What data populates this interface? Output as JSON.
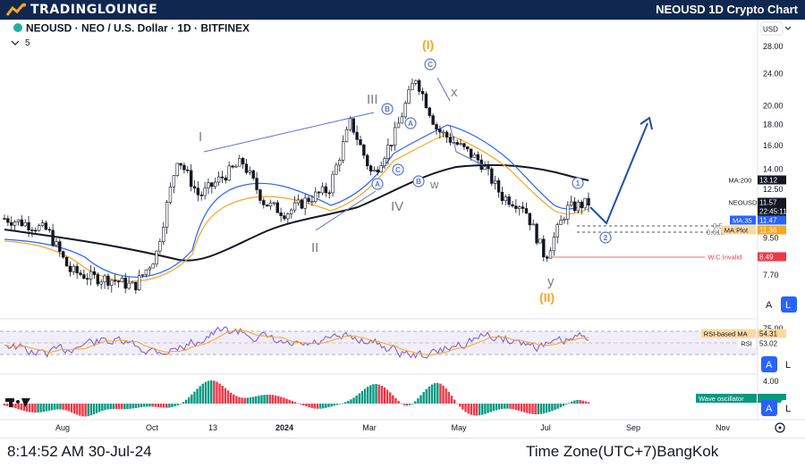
{
  "header": {
    "logo_text": "TRADINGLOUNGE",
    "title": "NEOUSD 1D Crypto Chart"
  },
  "legend": {
    "symbol_line": "NEOUSD · NEO / U.S. Dollar · 1D · BITFINEX",
    "indicator_count": "5"
  },
  "price_axis": {
    "currency": "USD"
  },
  "footer": {
    "clock": "8:14:52 AM 30-Jul-24",
    "timezone": "Time Zone(UTC+7)BangKok"
  },
  "panel_controls": {
    "a_label": "A",
    "l_label": "L"
  },
  "elliott_labels": {
    "wave_I": "I",
    "wave_II": "II",
    "wave_III": "III",
    "wave_IV": "IV",
    "wave_x": "x",
    "wave_y": "y",
    "wave_w": "w",
    "major_I": "(I)",
    "major_II": "(II)",
    "circle_A": "A",
    "circle_B": "B",
    "circle_C": "C",
    "circle_A2": "A",
    "circle_B2": "B",
    "circle_C2": "C",
    "circle_1": "1",
    "circle_2": "2"
  },
  "fib_labels": {
    "fib_05": "0.5",
    "fib_0618": "0.618"
  },
  "chart_data": [
    {
      "type": "candlestick",
      "pane": "price",
      "scale": "log",
      "price_ticks": [
        28.0,
        24.0,
        20.0,
        18.0,
        16.0,
        14.0,
        12.5,
        9.5,
        7.7
      ],
      "time_ticks": [
        "Aug",
        "Oct",
        "13",
        "2024",
        "Mar",
        "May",
        "Jul",
        "Sep",
        "Nov"
      ],
      "price_path": [
        {
          "t": "Jul-23",
          "p": 10.6
        },
        {
          "t": "Aug-23",
          "p": 10.3
        },
        {
          "t": "Aug-23b",
          "p": 9.9
        },
        {
          "t": "Aug-23c",
          "p": 7.9
        },
        {
          "t": "Sep-23",
          "p": 7.6
        },
        {
          "t": "Oct-23",
          "p": 7.5
        },
        {
          "t": "Oct-23b",
          "p": 7.2
        },
        {
          "t": "Oct-23c",
          "p": 8.6
        },
        {
          "t": "Nov-23",
          "p": 15.0
        },
        {
          "t": "Nov-23b",
          "p": 12.0
        },
        {
          "t": "Dec-23",
          "p": 13.3
        },
        {
          "t": "Dec-23b",
          "p": 14.6
        },
        {
          "t": "Jan-24",
          "p": 11.6
        },
        {
          "t": "Jan-24b",
          "p": 10.9
        },
        {
          "t": "Feb-24",
          "p": 11.8
        },
        {
          "t": "Feb-24b",
          "p": 12.5
        },
        {
          "t": "Mar-24",
          "p": 18.3
        },
        {
          "t": "Mar-24b",
          "p": 13.5
        },
        {
          "t": "Mar-24c",
          "p": 16.8
        },
        {
          "t": "Apr-24",
          "p": 23.6
        },
        {
          "t": "Apr-24b",
          "p": 17.5
        },
        {
          "t": "May-24",
          "p": 16.0
        },
        {
          "t": "May-24b",
          "p": 14.6
        },
        {
          "t": "Jun-24",
          "p": 12.0
        },
        {
          "t": "Jun-24b",
          "p": 11.4
        },
        {
          "t": "Jul-24",
          "p": 8.5
        },
        {
          "t": "Jul-24b",
          "p": 11.2
        },
        {
          "t": "Jul-24c",
          "p": 11.57
        }
      ],
      "labels": [
        {
          "name": "MA:200",
          "value": "13.12",
          "color": "#131722"
        },
        {
          "name": "NEOUSD",
          "value": "11.57",
          "color": "#131722"
        },
        {
          "name": "",
          "value": "22:45:11",
          "color": "#131722"
        },
        {
          "name": "MA:35",
          "value": "11.47",
          "color": "#2962ff"
        },
        {
          "name": "MA:Plot",
          "value": "11.36",
          "color": "#f5a623"
        },
        {
          "name": "W.C.Invalid",
          "value": "8.49",
          "color": "#f23645"
        }
      ],
      "ma_colors": {
        "ma200": "#131722",
        "ma35": "#2962ff",
        "ma_plot": "#f5a623"
      },
      "invalidation_level": 8.49,
      "projection": [
        {
          "t": "Jul-24c",
          "p": 11.57
        },
        {
          "t": "Aug-24",
          "p": 10.3
        },
        {
          "t": "Sep-24",
          "p": 18.8
        }
      ]
    },
    {
      "type": "line",
      "pane": "rsi",
      "ticks": [
        75.0
      ],
      "labels": [
        {
          "name": "RSI-based MA",
          "value": "54.31",
          "color": "#f5a623"
        },
        {
          "name": "RSI",
          "value": "53.02",
          "color": "#7e57c2"
        }
      ],
      "band": [
        30,
        70
      ]
    },
    {
      "type": "bar",
      "pane": "wave_oscillator",
      "ticks": [
        4.0
      ],
      "labels": [
        {
          "name": "Wave oscillator",
          "value": "",
          "color": "#089981"
        }
      ],
      "colors": {
        "positive": "#089981",
        "negative": "#f23645"
      }
    }
  ]
}
